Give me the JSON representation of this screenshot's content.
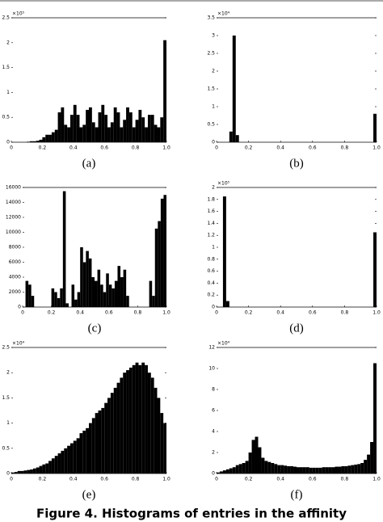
{
  "chart_data": [
    {
      "type": "histogram",
      "label": "(a)",
      "multiplier": "×10⁵",
      "color": "#000000",
      "bins": [
        0,
        0.02,
        0.04,
        0.06,
        0.08,
        0.1,
        0.12,
        0.14,
        0.16,
        0.18,
        0.2,
        0.22,
        0.24,
        0.26,
        0.28,
        0.3,
        0.32,
        0.34,
        0.36,
        0.38,
        0.4,
        0.42,
        0.44,
        0.46,
        0.48,
        0.5,
        0.52,
        0.54,
        0.56,
        0.58,
        0.6,
        0.62,
        0.64,
        0.66,
        0.68,
        0.7,
        0.72,
        0.74,
        0.76,
        0.78,
        0.8,
        0.82,
        0.84,
        0.86,
        0.88,
        0.9,
        0.92,
        0.94,
        0.96,
        0.98,
        1
      ],
      "values": [
        0,
        0,
        0,
        0,
        0,
        0.01,
        0.02,
        0.02,
        0.03,
        0.05,
        0.1,
        0.15,
        0.15,
        0.2,
        0.25,
        0.6,
        0.7,
        0.35,
        0.3,
        0.55,
        0.75,
        0.55,
        0.3,
        0.35,
        0.65,
        0.7,
        0.4,
        0.3,
        0.6,
        0.75,
        0.55,
        0.3,
        0.4,
        0.7,
        0.6,
        0.3,
        0.45,
        0.7,
        0.6,
        0.3,
        0.45,
        0.65,
        0.5,
        0.3,
        0.55,
        0.55,
        0.35,
        0.3,
        0.5,
        2.05
      ],
      "xlim": [
        0,
        1
      ],
      "xticks": [
        0,
        0.2,
        0.4,
        0.6,
        0.8,
        {
          "value": 1,
          "label": "1.0"
        }
      ],
      "ylim": [
        0,
        2.5
      ],
      "yticks": [
        0,
        0.5,
        1,
        1.5,
        2,
        2.5
      ]
    },
    {
      "type": "histogram",
      "label": "(b)",
      "multiplier": "×10⁴",
      "color": "#000000",
      "bins": [
        0,
        0.02,
        0.04,
        0.06,
        0.08,
        0.1,
        0.12,
        0.14,
        0.16,
        0.18,
        0.2,
        0.22,
        0.24,
        0.26,
        0.28,
        0.3,
        0.32,
        0.34,
        0.36,
        0.38,
        0.4,
        0.42,
        0.44,
        0.46,
        0.48,
        0.5,
        0.52,
        0.54,
        0.56,
        0.58,
        0.6,
        0.62,
        0.64,
        0.66,
        0.68,
        0.7,
        0.72,
        0.74,
        0.76,
        0.78,
        0.8,
        0.82,
        0.84,
        0.86,
        0.88,
        0.9,
        0.92,
        0.94,
        0.96,
        0.98,
        1
      ],
      "values": [
        0,
        0,
        0,
        0,
        0.3,
        3,
        0.2,
        0,
        0,
        0,
        0,
        0,
        0,
        0,
        0,
        0,
        0,
        0,
        0,
        0,
        0,
        0,
        0,
        0,
        0,
        0,
        0,
        0,
        0,
        0,
        0,
        0,
        0,
        0,
        0,
        0,
        0,
        0,
        0,
        0,
        0,
        0,
        0,
        0,
        0,
        0,
        0,
        0,
        0,
        0.8
      ],
      "xlim": [
        0,
        1
      ],
      "xticks": [
        0,
        0.2,
        0.4,
        0.6,
        0.8,
        {
          "value": 1,
          "label": "1.0"
        }
      ],
      "ylim": [
        0,
        3.5
      ],
      "yticks": [
        0,
        0.5,
        1,
        1.5,
        2,
        2.5,
        3,
        3.5
      ]
    },
    {
      "type": "histogram",
      "label": "(c)",
      "color": "#000000",
      "bins": [
        0,
        0.02,
        0.04,
        0.06,
        0.08,
        0.1,
        0.12,
        0.14,
        0.16,
        0.18,
        0.2,
        0.22,
        0.24,
        0.26,
        0.28,
        0.3,
        0.32,
        0.34,
        0.36,
        0.38,
        0.4,
        0.42,
        0.44,
        0.46,
        0.48,
        0.5,
        0.52,
        0.54,
        0.56,
        0.58,
        0.6,
        0.62,
        0.64,
        0.66,
        0.68,
        0.7,
        0.72,
        0.74,
        0.76,
        0.78,
        0.8,
        0.82,
        0.84,
        0.86,
        0.88,
        0.9,
        0.92,
        0.94,
        0.96,
        0.98,
        1
      ],
      "values": [
        0,
        3500,
        3000,
        1500,
        0,
        0,
        0,
        0,
        0,
        0,
        2500,
        2000,
        1200,
        2500,
        15500,
        500,
        0,
        3000,
        1000,
        2000,
        8000,
        6000,
        7500,
        6500,
        4000,
        3500,
        5000,
        3000,
        2000,
        4500,
        3000,
        2500,
        3500,
        5500,
        4000,
        5000,
        1500,
        0,
        0,
        0,
        0,
        0,
        0,
        0,
        3500,
        1500,
        10500,
        11500,
        14500,
        15000
      ],
      "xlim": [
        0,
        1
      ],
      "xticks": [
        0,
        0.2,
        0.4,
        0.6,
        0.8,
        {
          "value": 1,
          "label": "1.0"
        }
      ],
      "ylim": [
        0,
        16000
      ],
      "yticks": [
        0,
        2000,
        4000,
        6000,
        8000,
        10000,
        12000,
        14000,
        16000
      ]
    },
    {
      "type": "histogram",
      "label": "(d)",
      "multiplier": "×10⁵",
      "color": "#000000",
      "bins": [
        0,
        0.02,
        0.04,
        0.06,
        0.08,
        0.1,
        0.12,
        0.14,
        0.16,
        0.18,
        0.2,
        0.22,
        0.24,
        0.26,
        0.28,
        0.3,
        0.32,
        0.34,
        0.36,
        0.38,
        0.4,
        0.42,
        0.44,
        0.46,
        0.48,
        0.5,
        0.52,
        0.54,
        0.56,
        0.58,
        0.6,
        0.62,
        0.64,
        0.66,
        0.68,
        0.7,
        0.72,
        0.74,
        0.76,
        0.78,
        0.8,
        0.82,
        0.84,
        0.86,
        0.88,
        0.9,
        0.92,
        0.94,
        0.96,
        0.98,
        1
      ],
      "values": [
        0,
        0,
        1.85,
        0.1,
        0,
        0,
        0,
        0,
        0,
        0,
        0,
        0,
        0,
        0,
        0,
        0,
        0,
        0,
        0,
        0,
        0,
        0,
        0,
        0,
        0,
        0,
        0,
        0,
        0,
        0,
        0,
        0,
        0,
        0,
        0,
        0,
        0,
        0,
        0,
        0,
        0,
        0,
        0,
        0,
        0,
        0,
        0,
        0,
        0,
        1.25
      ],
      "xlim": [
        0,
        1
      ],
      "xticks": [
        0,
        0.2,
        0.4,
        0.6,
        0.8,
        {
          "value": 1,
          "label": "1.0"
        }
      ],
      "ylim": [
        0,
        2
      ],
      "yticks": [
        0,
        0.2,
        0.4,
        0.6,
        0.8,
        1,
        1.2,
        1.4,
        1.6,
        1.8,
        2
      ]
    },
    {
      "type": "histogram",
      "label": "(e)",
      "multiplier": "×10⁴",
      "color": "#000000",
      "bins": [
        0,
        0.02,
        0.04,
        0.06,
        0.08,
        0.1,
        0.12,
        0.14,
        0.16,
        0.18,
        0.2,
        0.22,
        0.24,
        0.26,
        0.28,
        0.3,
        0.32,
        0.34,
        0.36,
        0.38,
        0.4,
        0.42,
        0.44,
        0.46,
        0.48,
        0.5,
        0.52,
        0.54,
        0.56,
        0.58,
        0.6,
        0.62,
        0.64,
        0.66,
        0.68,
        0.7,
        0.72,
        0.74,
        0.76,
        0.78,
        0.8,
        0.82,
        0.84,
        0.86,
        0.88,
        0.9,
        0.92,
        0.94,
        0.96,
        0.98,
        1
      ],
      "values": [
        0.02,
        0.03,
        0.05,
        0.05,
        0.06,
        0.07,
        0.08,
        0.1,
        0.12,
        0.15,
        0.18,
        0.2,
        0.25,
        0.3,
        0.35,
        0.4,
        0.45,
        0.5,
        0.55,
        0.6,
        0.65,
        0.7,
        0.8,
        0.85,
        0.9,
        1,
        1.1,
        1.2,
        1.25,
        1.3,
        1.4,
        1.5,
        1.6,
        1.7,
        1.8,
        1.9,
        2,
        2.05,
        2.1,
        2.15,
        2.2,
        2.15,
        2.2,
        2.15,
        2,
        1.9,
        1.7,
        1.5,
        1.2,
        1
      ],
      "xlim": [
        0,
        1
      ],
      "xticks": [
        0,
        0.2,
        0.4,
        0.6,
        0.8,
        {
          "value": 1,
          "label": "1.0"
        }
      ],
      "ylim": [
        0,
        2.5
      ],
      "yticks": [
        0,
        0.5,
        1,
        1.5,
        2,
        2.5
      ]
    },
    {
      "type": "histogram",
      "label": "(f)",
      "multiplier": "×10⁴",
      "color": "#000000",
      "bins": [
        0,
        0.02,
        0.04,
        0.06,
        0.08,
        0.1,
        0.12,
        0.14,
        0.16,
        0.18,
        0.2,
        0.22,
        0.24,
        0.26,
        0.28,
        0.3,
        0.32,
        0.34,
        0.36,
        0.38,
        0.4,
        0.42,
        0.44,
        0.46,
        0.48,
        0.5,
        0.52,
        0.54,
        0.56,
        0.58,
        0.6,
        0.62,
        0.64,
        0.66,
        0.68,
        0.7,
        0.72,
        0.74,
        0.76,
        0.78,
        0.8,
        0.82,
        0.84,
        0.86,
        0.88,
        0.9,
        0.92,
        0.94,
        0.96,
        0.98,
        1
      ],
      "values": [
        0.1,
        0.2,
        0.3,
        0.4,
        0.5,
        0.6,
        0.8,
        0.9,
        1,
        1.2,
        2,
        3.2,
        3.5,
        2.5,
        1.5,
        1.2,
        1.1,
        1,
        0.9,
        0.8,
        0.8,
        0.75,
        0.7,
        0.7,
        0.65,
        0.6,
        0.6,
        0.6,
        0.6,
        0.55,
        0.55,
        0.55,
        0.55,
        0.6,
        0.6,
        0.6,
        0.6,
        0.65,
        0.65,
        0.7,
        0.7,
        0.75,
        0.8,
        0.85,
        0.9,
        1,
        1.3,
        1.8,
        3,
        10.5
      ],
      "xlim": [
        0,
        1
      ],
      "xticks": [
        0,
        0.2,
        0.4,
        0.6,
        0.8,
        {
          "value": 1,
          "label": "1.0"
        }
      ],
      "ylim": [
        0,
        12
      ],
      "yticks": [
        0,
        2,
        4,
        6,
        8,
        10,
        12
      ]
    }
  ],
  "caption": "Figure 4. Histograms of entries in the affinity"
}
